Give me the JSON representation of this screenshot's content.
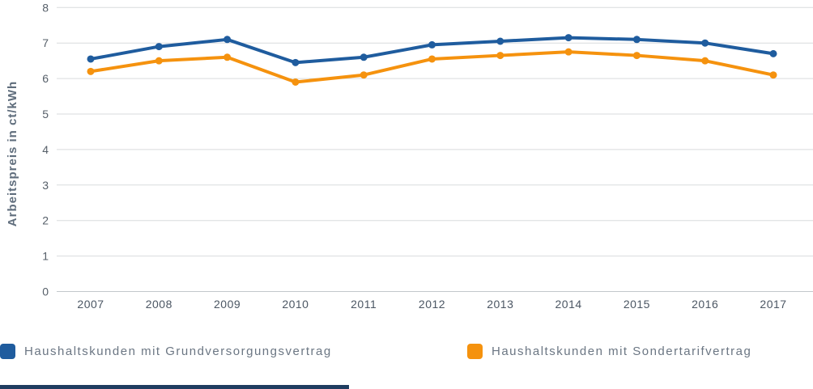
{
  "chart_data": {
    "type": "line",
    "title": "",
    "xlabel": "",
    "ylabel": "Arbeitspreis in ct/kWh",
    "ylim": [
      0,
      8
    ],
    "yticks": [
      0,
      1,
      2,
      3,
      4,
      5,
      6,
      7,
      8
    ],
    "grid": true,
    "legend_position": "bottom",
    "categories": [
      "2007",
      "2008",
      "2009",
      "2010",
      "2011",
      "2012",
      "2013",
      "2014",
      "2015",
      "2016",
      "2017"
    ],
    "series": [
      {
        "name": "Haushaltskunden mit Grundversorgungsvertrag",
        "color": "#1F5C9E",
        "values": [
          6.55,
          6.9,
          7.1,
          6.45,
          6.6,
          6.95,
          7.05,
          7.15,
          7.1,
          7.0,
          6.7
        ]
      },
      {
        "name": "Haushaltskunden mit Sondertarifvertrag",
        "color": "#F5920E",
        "values": [
          6.2,
          6.5,
          6.6,
          5.9,
          6.1,
          6.55,
          6.65,
          6.75,
          6.65,
          6.5,
          6.1
        ]
      }
    ],
    "colors": {
      "gridline": "#d9dbdd",
      "zero_axis": "#c3c7cb",
      "ytick_label": "#565f69",
      "xtick_label": "#4b5663",
      "ylabel_text": "#5f6d7c"
    }
  },
  "footer": {
    "bar_color": "#1F3D60"
  }
}
